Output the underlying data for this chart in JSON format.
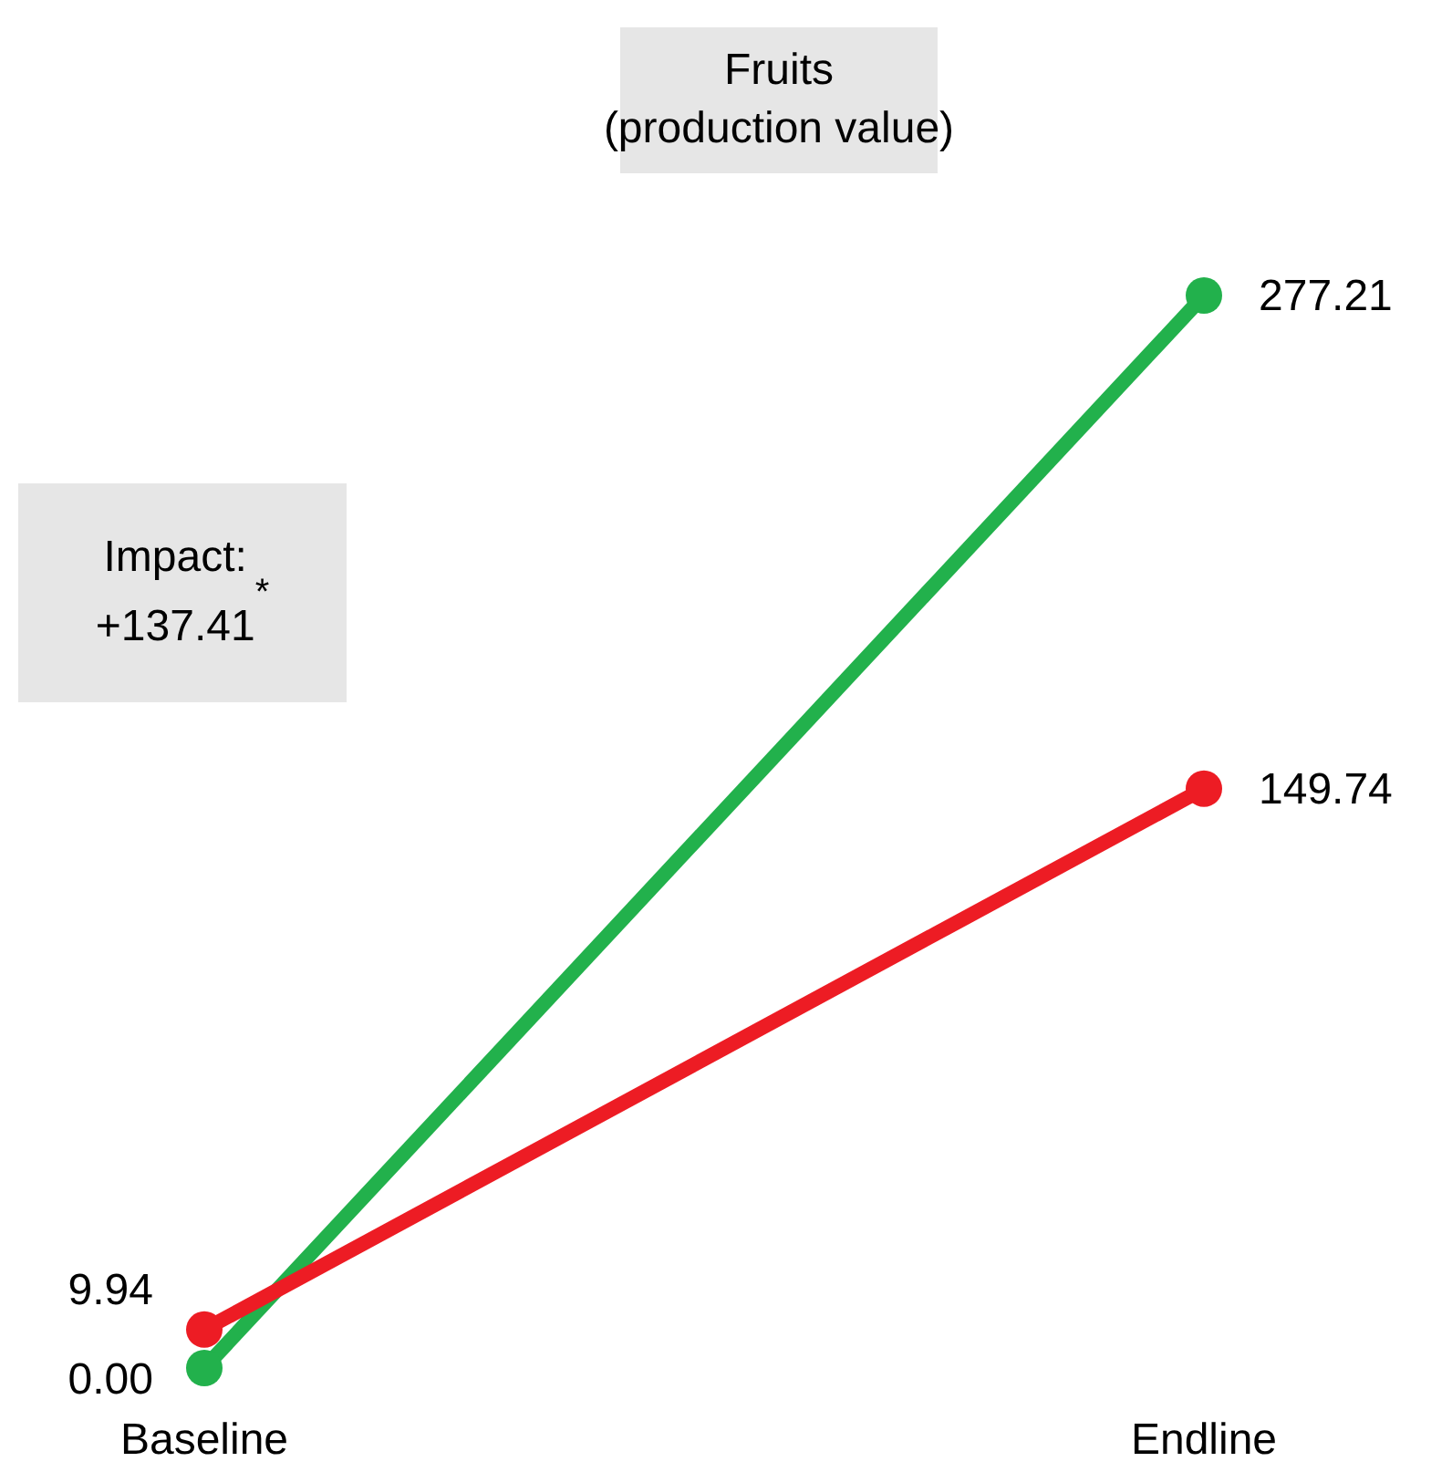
{
  "chart_data": {
    "type": "line",
    "title": "Fruits\n(production value)",
    "categories": [
      "Baseline",
      "Endline"
    ],
    "series": [
      {
        "color": "#22b14c",
        "values": [
          0,
          277.21
        ],
        "value_labels": [
          "0.00",
          "277.21"
        ]
      },
      {
        "color": "#ed1c24",
        "values": [
          9.94,
          149.74
        ],
        "value_labels": [
          "9.94",
          "149.74"
        ]
      }
    ],
    "annotations": [
      "Impact:\n+137.41$^{*}$"
    ],
    "marker": "circle",
    "grid": false,
    "legend": false
  }
}
